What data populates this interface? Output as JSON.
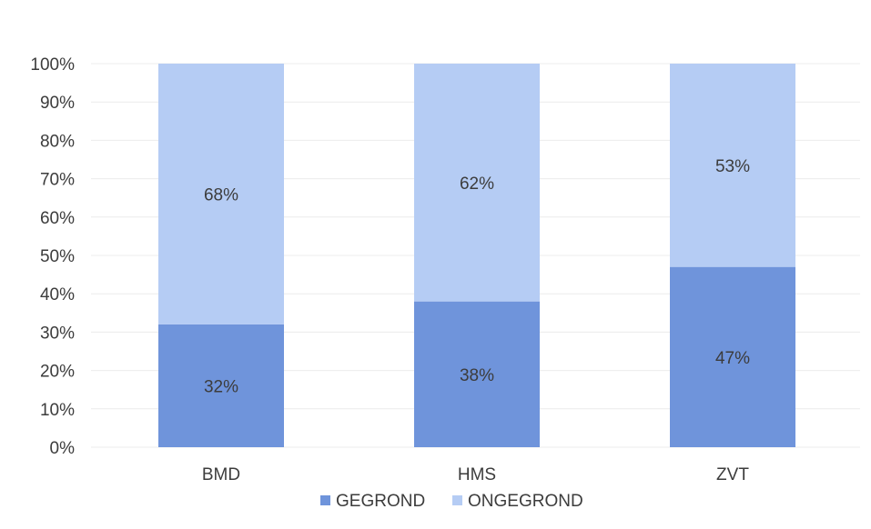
{
  "chart_data": {
    "type": "bar",
    "stacked": true,
    "percent_stacked": true,
    "title": "",
    "xlabel": "",
    "ylabel": "",
    "categories": [
      "BMD",
      "HMS",
      "ZVT"
    ],
    "series": [
      {
        "name": "GEGROND",
        "values": [
          32,
          38,
          47
        ],
        "labels": [
          "32%",
          "38%",
          "47%"
        ],
        "color": "#6f94db"
      },
      {
        "name": "ONGEGROND",
        "values": [
          68,
          62,
          53
        ],
        "labels": [
          "68%",
          "62%",
          "53%"
        ],
        "color": "#b5ccf4"
      }
    ],
    "ylim": [
      0,
      100
    ],
    "y_ticks": [
      0,
      10,
      20,
      30,
      40,
      50,
      60,
      70,
      80,
      90,
      100
    ],
    "y_tick_labels": [
      "0%",
      "10%",
      "20%",
      "30%",
      "40%",
      "50%",
      "60%",
      "70%",
      "80%",
      "90%",
      "100%"
    ],
    "grid": true,
    "legend_position": "bottom"
  }
}
